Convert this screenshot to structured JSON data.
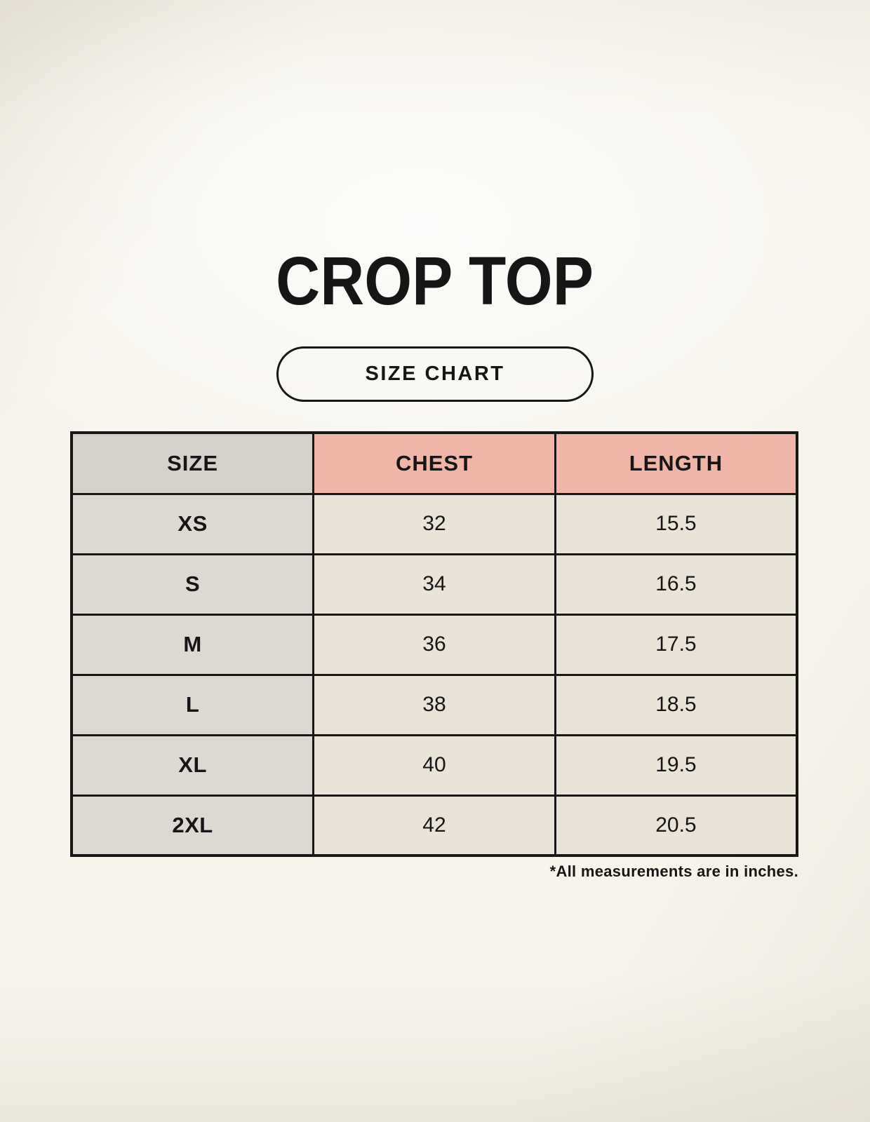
{
  "page": {
    "title": "CROP TOP",
    "badge_label": "SIZE CHART",
    "footnote": "*All measurements are in inches."
  },
  "chart_data": {
    "type": "table",
    "title": "CROP TOP",
    "subtitle": "SIZE CHART",
    "columns": [
      "SIZE",
      "CHEST",
      "LENGTH"
    ],
    "rows": [
      [
        "XS",
        "32",
        "15.5"
      ],
      [
        "S",
        "34",
        "16.5"
      ],
      [
        "M",
        "36",
        "17.5"
      ],
      [
        "L",
        "38",
        "18.5"
      ],
      [
        "XL",
        "40",
        "19.5"
      ],
      [
        "2XL",
        "42",
        "20.5"
      ]
    ],
    "units_note": "*All measurements are in inches."
  },
  "colors": {
    "page_background": "#f7f4ec",
    "header_size_bg": "#d6d0ca",
    "header_measure_bg": "#efb6a7",
    "size_column_bg": "#ded8d2",
    "value_cell_bg": "#e9e3d8",
    "table_border": "#171717",
    "text": "#161616"
  }
}
